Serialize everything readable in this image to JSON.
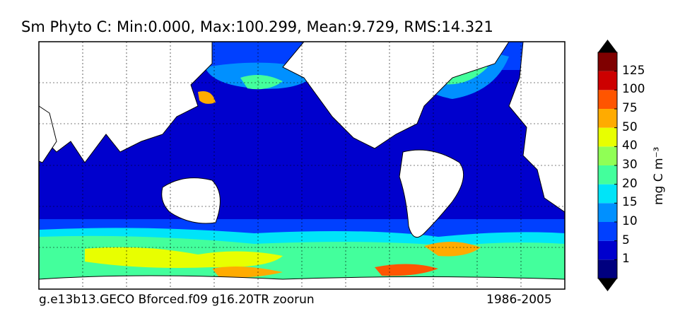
{
  "title": "Sm Phyto C: Min:0.000, Max:100.299, Mean:9.729, RMS:14.321",
  "footer": {
    "left": "g.e13b13.GECO Bforced.f09 g16.20TR zoorun",
    "right": "1986-2005"
  },
  "colorbar": {
    "unit": "mg C m⁻³",
    "ticks": [
      "1",
      "5",
      "10",
      "15",
      "20",
      "30",
      "40",
      "50",
      "75",
      "100",
      "125"
    ],
    "colors": [
      "#00007f",
      "#0000cd",
      "#0040ff",
      "#0090ff",
      "#00e4f8",
      "#43ff9c",
      "#90ff55",
      "#e8ff00",
      "#ffab00",
      "#ff5500",
      "#cd0000",
      "#7f0000"
    ],
    "under_color": "#000000",
    "over_color": "#000000"
  },
  "colors": {
    "land": "#ffffff",
    "ocean_base": "#0000cd"
  }
}
